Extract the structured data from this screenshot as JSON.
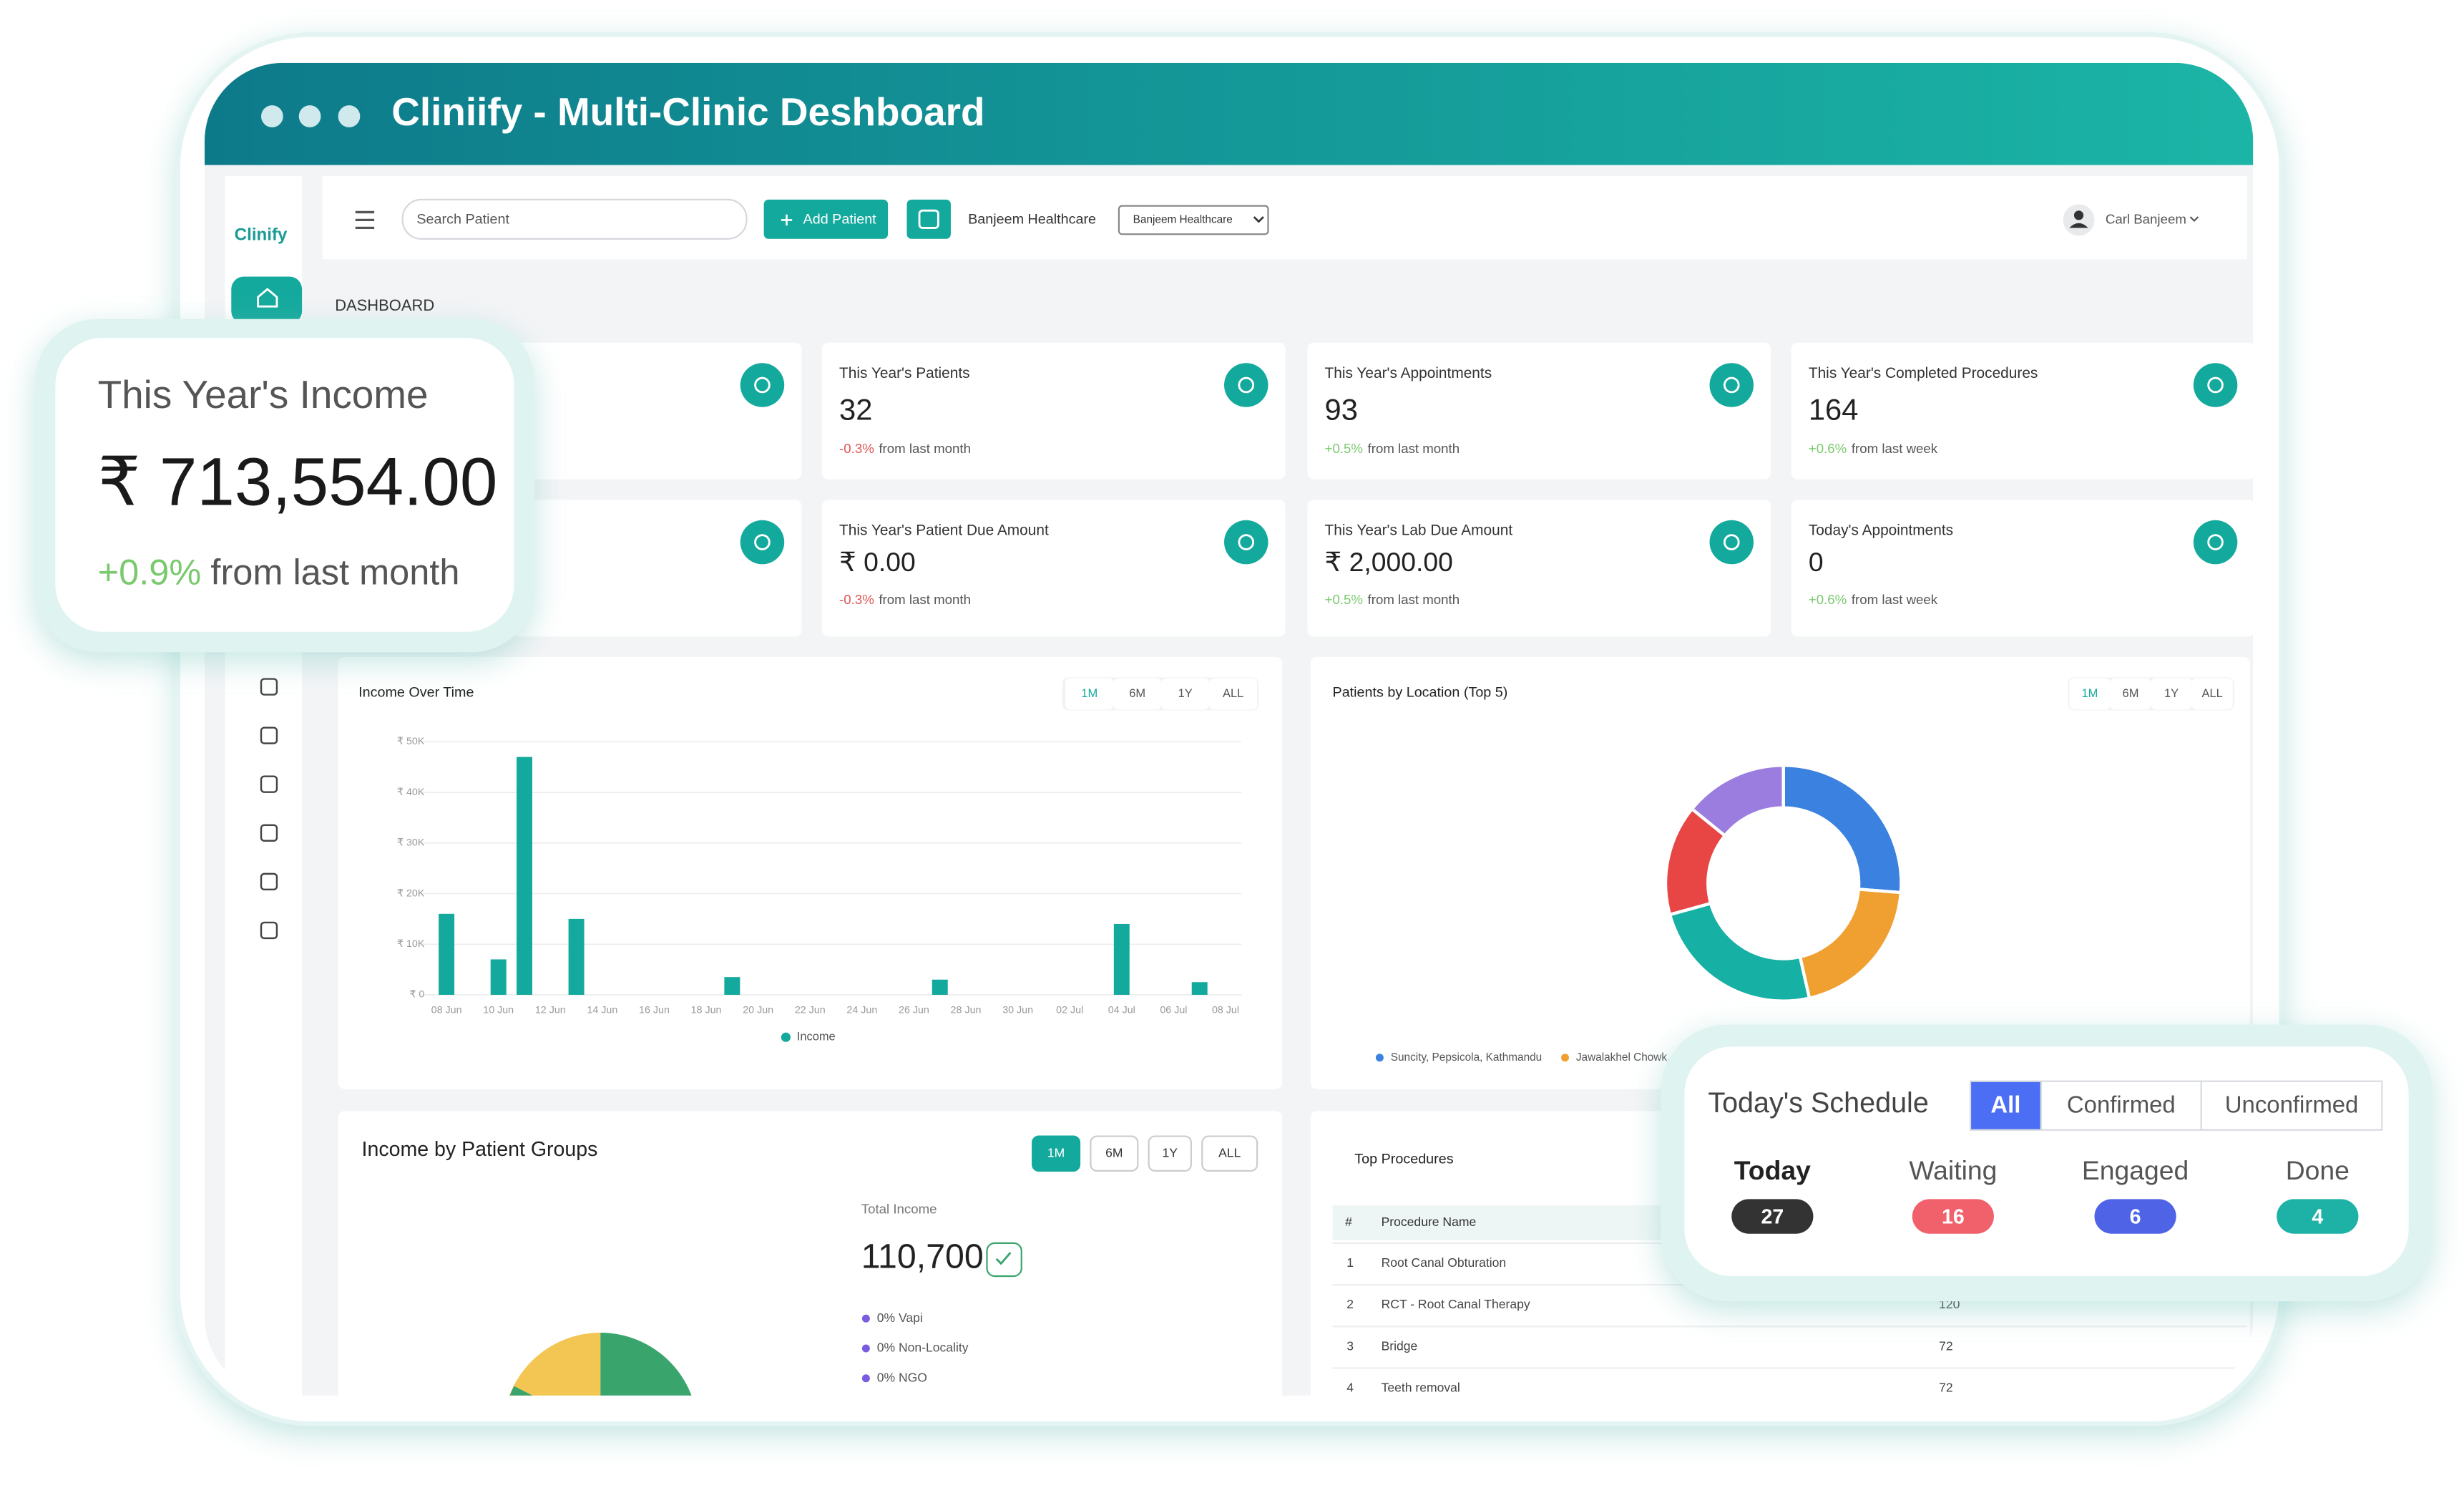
{
  "window": {
    "title": "Cliniify - Multi-Clinic Deshboard"
  },
  "sidebar": {
    "logo": "Clinify"
  },
  "topbar": {
    "search_placeholder": "Search Patient",
    "add_button": "Add Patient",
    "clinic_name": "Banjeem Healthcare",
    "clinic_select": "Banjeem Healthcare",
    "user": "Carl Banjeem"
  },
  "page_title": "DASHBOARD",
  "stats": [
    {
      "title": "This Year's Patients",
      "value": "32",
      "change": "-0.3%",
      "period": "from last month"
    },
    {
      "title": "This Year's Appointments",
      "value": "93",
      "change": "+0.5%",
      "period": "from last month"
    },
    {
      "title": "This Year's Completed Procedures",
      "value": "164",
      "change": "+0.6%",
      "period": "from last week"
    },
    {
      "title": "This Year's Patient Due Amount",
      "value": "₹ 0.00",
      "change": "-0.3%",
      "period": "from last month"
    },
    {
      "title": "This Year's Lab Due Amount",
      "value": "₹ 2,000.00",
      "change": "+0.5%",
      "period": "from last month"
    },
    {
      "title": "Today's Appointments",
      "value": "0",
      "change": "+0.6%",
      "period": "from last week"
    }
  ],
  "income_popup": {
    "title": "This Year's Income",
    "value": "₹ 713,554.00",
    "change": "+0.9%",
    "period": "from last month"
  },
  "income_over_time": {
    "title": "Income Over Time",
    "tabs": [
      "1M",
      "6M",
      "1Y",
      "ALL"
    ],
    "chart": {
      "type": "bar",
      "categories": [
        "08 Jun",
        null,
        "10 Jun",
        null,
        "12 Jun",
        null,
        "14 Jun",
        null,
        "16 Jun",
        null,
        "18 Jun",
        null,
        "20 Jun",
        null,
        "22 Jun",
        null,
        "24 Jun",
        null,
        "26 Jun",
        null,
        "28 Jun",
        null,
        "30 Jun",
        null,
        "02 Jul",
        null,
        "04 Jul",
        null,
        "06 Jul",
        null,
        "08 Jul"
      ],
      "series": [
        {
          "name": "Income",
          "color": "#14a99d",
          "values": [
            16000,
            0,
            7000,
            47000,
            0,
            15000,
            0,
            0,
            0,
            0,
            0,
            3500,
            0,
            0,
            0,
            0,
            0,
            0,
            0,
            3000,
            0,
            0,
            0,
            0,
            0,
            0,
            14000,
            0,
            0,
            2500,
            0
          ]
        }
      ],
      "ylim": [
        0,
        50000
      ],
      "yticks": [
        {
          "value": 0,
          "label": "₹ 0"
        },
        {
          "value": 10000,
          "label": "₹ 10K"
        },
        {
          "value": 20000,
          "label": "₹ 20K"
        },
        {
          "value": 30000,
          "label": "₹ 30K"
        },
        {
          "value": 40000,
          "label": "₹ 40K"
        },
        {
          "value": 50000,
          "label": "₹ 50K"
        }
      ],
      "grid": true
    }
  },
  "patients_by_location": {
    "title": "Patients by Location (Top 5)",
    "tabs": [
      "1M",
      "6M",
      "1Y",
      "ALL"
    ],
    "chart": {
      "type": "donut",
      "values": [
        26,
        20,
        24,
        15,
        14
      ],
      "colors": [
        "#3b82e0",
        "#f0a030",
        "#17b0a4",
        "#e84545",
        "#9b7de0"
      ],
      "legend": [
        {
          "name": "Suncity, Pepsicola, Kathmandu",
          "color": "#3b82e0"
        },
        {
          "name": "Jawalakhel Chowk, Lalitp",
          "color": "#f0a030"
        }
      ]
    }
  },
  "income_by_groups": {
    "title": "Income by Patient Groups",
    "tabs": [
      "1M",
      "6M",
      "1Y",
      "ALL"
    ],
    "total_label": "Total Income",
    "total": "110,700",
    "legend": [
      "0% Vapi",
      "0% Non-Locality",
      "0% NGO"
    ]
  },
  "top_procedures": {
    "title": "Top Procedures",
    "columns": [
      "#",
      "Procedure Name"
    ],
    "rows": [
      [
        "1",
        "Root Canal Obturation"
      ],
      [
        "2",
        "RCT - Root Canal Therapy",
        "120"
      ],
      [
        "3",
        "Bridge",
        "72"
      ],
      [
        "4",
        "Teeth removal",
        "72"
      ]
    ]
  },
  "schedule": {
    "title": "Today's Schedule",
    "filters": [
      "All",
      "Confirmed",
      "Unconfirmed"
    ],
    "counts": [
      {
        "label": "Today",
        "count": "27"
      },
      {
        "label": "Waiting",
        "count": "16"
      },
      {
        "label": "Engaged",
        "count": "6"
      },
      {
        "label": "Done",
        "count": "4"
      }
    ]
  }
}
